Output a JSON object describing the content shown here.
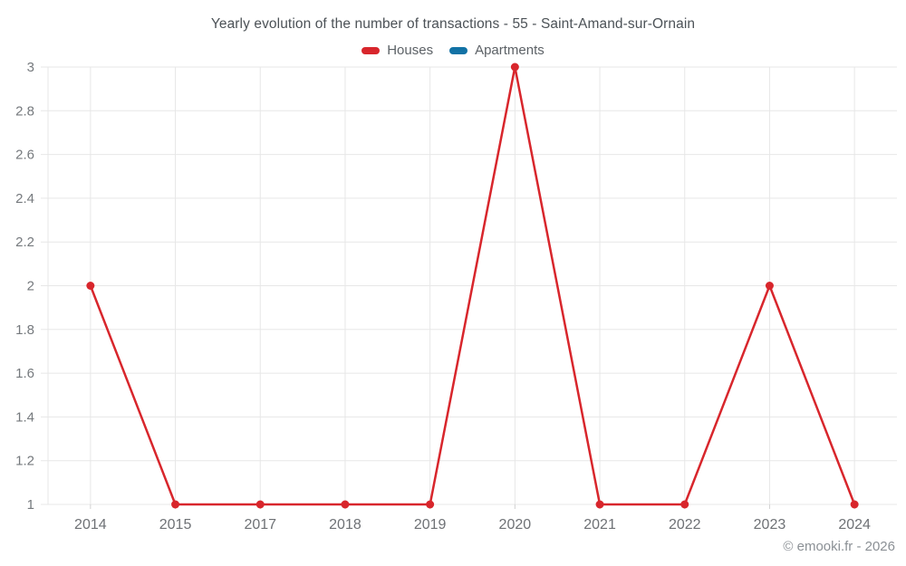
{
  "chart_data": {
    "type": "line",
    "title": "Yearly evolution of the number of transactions - 55 - Saint-Amand-sur-Ornain",
    "categories": [
      "2014",
      "2015",
      "2017",
      "2018",
      "2019",
      "2020",
      "2021",
      "2022",
      "2023",
      "2024"
    ],
    "series": [
      {
        "name": "Houses",
        "color": "#d8262c",
        "values": [
          2,
          1,
          1,
          1,
          1,
          3,
          1,
          1,
          2,
          1
        ]
      },
      {
        "name": "Apartments",
        "color": "#1272a5",
        "values": []
      }
    ],
    "ylim": [
      1,
      3
    ],
    "yticks": [
      1,
      1.2,
      1.4,
      1.6,
      1.8,
      2,
      2.2,
      2.4,
      2.6,
      2.8,
      3
    ],
    "xlabel": "",
    "ylabel": "",
    "grid": true,
    "legend_position": "top"
  },
  "footer": {
    "copyright": "© emooki.fr - 2026"
  },
  "colors": {
    "grid": "#e7e7e7",
    "tick_mark": "#d2d2d2",
    "y_tick_label": "#75797d",
    "x_tick_label": "#6e7175",
    "title": "#4c5257"
  }
}
